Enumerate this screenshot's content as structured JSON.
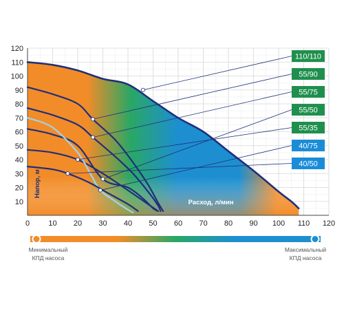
{
  "chart_data": {
    "type": "line",
    "title": "",
    "xlabel": "Расход, л/мин",
    "ylabel": "Напор, м",
    "xlim": [
      0,
      120
    ],
    "ylim": [
      0,
      120
    ],
    "x_ticks": [
      0,
      10,
      20,
      30,
      40,
      50,
      60,
      70,
      80,
      90,
      100,
      110,
      120
    ],
    "y_ticks": [
      10,
      20,
      30,
      40,
      50,
      60,
      70,
      80,
      90,
      100,
      110,
      120
    ],
    "grid": true,
    "legend_position": "right",
    "colors": {
      "low_efficiency": "#f28c28",
      "mid_efficiency": "#2aa765",
      "high_efficiency": "#1d8fd0",
      "curve": "#1f2f7a",
      "curve_light": "#9fd3ec",
      "legend_green": "#1f8f4e",
      "legend_blue": "#1a8cd8"
    },
    "series": [
      {
        "name": "110/110",
        "color": "#1f2f7a",
        "marker": [
          46,
          90
        ],
        "points": [
          [
            0,
            110
          ],
          [
            10,
            108
          ],
          [
            20,
            104
          ],
          [
            30,
            98
          ],
          [
            40,
            94
          ],
          [
            50,
            82
          ],
          [
            60,
            70
          ],
          [
            70,
            60
          ],
          [
            80,
            46
          ],
          [
            90,
            32
          ],
          [
            100,
            17
          ],
          [
            105,
            10
          ],
          [
            108,
            5
          ]
        ]
      },
      {
        "name": "55/90",
        "color": "#1f2f7a",
        "marker": [
          26,
          69
        ],
        "points": [
          [
            0,
            92
          ],
          [
            10,
            87
          ],
          [
            20,
            80
          ],
          [
            26,
            69
          ],
          [
            35,
            54
          ],
          [
            42,
            38
          ],
          [
            48,
            22
          ],
          [
            52,
            9
          ],
          [
            54,
            3
          ]
        ]
      },
      {
        "name": "55/75",
        "color": "#1f2f7a",
        "marker": [
          26,
          56
        ],
        "points": [
          [
            0,
            77
          ],
          [
            10,
            72
          ],
          [
            20,
            65
          ],
          [
            26,
            56
          ],
          [
            35,
            42
          ],
          [
            42,
            30
          ],
          [
            48,
            17
          ],
          [
            52,
            7
          ],
          [
            53,
            3
          ]
        ]
      },
      {
        "name": "55/50",
        "color": "#1f2f7a",
        "marker": [
          30,
          26
        ],
        "points": [
          [
            0,
            62
          ],
          [
            10,
            58
          ],
          [
            20,
            50
          ],
          [
            30,
            26
          ],
          [
            40,
            20
          ],
          [
            46,
            12
          ],
          [
            50,
            5
          ],
          [
            52,
            3
          ]
        ]
      },
      {
        "name": "55/35",
        "color": "#1f2f7a",
        "marker": [
          20,
          40
        ],
        "points": [
          [
            0,
            47
          ],
          [
            10,
            45
          ],
          [
            20,
            40
          ],
          [
            30,
            30
          ],
          [
            40,
            18
          ],
          [
            48,
            8
          ],
          [
            52,
            3
          ]
        ]
      },
      {
        "name": "40/75",
        "color": "#9fd3ec",
        "marker": [
          29,
          18
        ],
        "points": [
          [
            0,
            70
          ],
          [
            10,
            63
          ],
          [
            20,
            45
          ],
          [
            25,
            30
          ],
          [
            29,
            18
          ],
          [
            35,
            10
          ],
          [
            40,
            4
          ],
          [
            42,
            2
          ]
        ]
      },
      {
        "name": "40/50",
        "color": "#1f2f7a",
        "marker": [
          16,
          30
        ],
        "points": [
          [
            0,
            35
          ],
          [
            10,
            33
          ],
          [
            16,
            30
          ],
          [
            24,
            24
          ],
          [
            32,
            16
          ],
          [
            40,
            8
          ],
          [
            44,
            3
          ]
        ]
      }
    ],
    "annotations": {
      "efficiency_min": "Минимальный\nКПД насоса",
      "efficiency_max": "Максимальный\nКПД насоса"
    }
  }
}
